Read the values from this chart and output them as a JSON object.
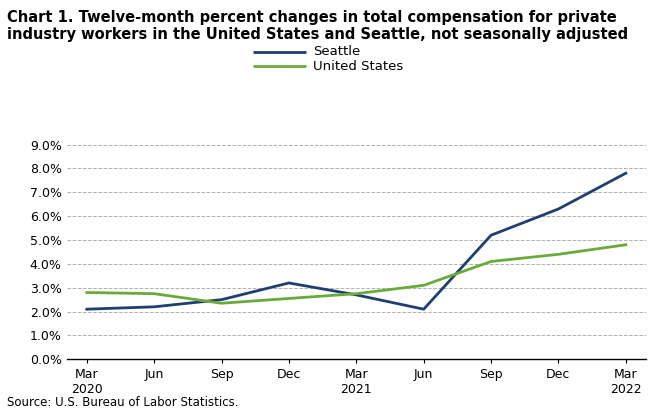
{
  "title_line1": "Chart 1. Twelve-month percent changes in total compensation for private",
  "title_line2": "industry workers in the United States and Seattle, not seasonally adjusted",
  "source": "Source: U.S. Bureau of Labor Statistics.",
  "x_labels": [
    "Mar\n2020",
    "Jun",
    "Sep",
    "Dec",
    "Mar\n2021",
    "Jun",
    "Sep",
    "Dec",
    "Mar\n2022"
  ],
  "x_positions": [
    0,
    1,
    2,
    3,
    4,
    5,
    6,
    7,
    8
  ],
  "seattle_values": [
    2.1,
    2.2,
    2.5,
    3.2,
    2.7,
    2.1,
    5.2,
    6.3,
    7.8
  ],
  "us_values": [
    2.8,
    2.75,
    2.35,
    2.55,
    2.75,
    3.1,
    4.1,
    4.4,
    4.8
  ],
  "seattle_color": "#1f3f6e",
  "us_color": "#6aaa3a",
  "ylim": [
    0.0,
    9.0
  ],
  "yticks": [
    0.0,
    1.0,
    2.0,
    3.0,
    4.0,
    5.0,
    6.0,
    7.0,
    8.0,
    9.0
  ],
  "legend_labels": [
    "Seattle",
    "United States"
  ],
  "line_width": 2.0,
  "bg_color": "#ffffff",
  "grid_color": "#b0b0b0"
}
